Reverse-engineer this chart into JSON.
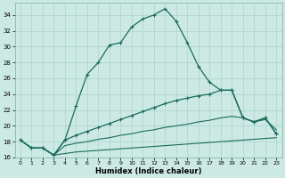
{
  "xlabel": "Humidex (Indice chaleur)",
  "bg_color": "#cce9e4",
  "grid_color": "#b0d8d0",
  "line_color": "#1a6b5e",
  "xlim": [
    -0.5,
    23.5
  ],
  "ylim": [
    16,
    35.5
  ],
  "yticks": [
    16,
    18,
    20,
    22,
    24,
    26,
    28,
    30,
    32,
    34
  ],
  "xticks": [
    0,
    1,
    2,
    3,
    4,
    5,
    6,
    7,
    8,
    9,
    10,
    11,
    12,
    13,
    14,
    15,
    16,
    17,
    18,
    19,
    20,
    21,
    22,
    23
  ],
  "line1_x": [
    0,
    1,
    2,
    3,
    4,
    5,
    6,
    7,
    8,
    9,
    10,
    11,
    12,
    13,
    14,
    15,
    16,
    17,
    18,
    19,
    20,
    21,
    22,
    23
  ],
  "line1_y": [
    18.2,
    17.2,
    17.2,
    16.3,
    18.2,
    22.5,
    26.5,
    28.0,
    30.2,
    30.5,
    32.5,
    33.5,
    34.0,
    34.8,
    33.2,
    30.5,
    27.5,
    25.5,
    24.5,
    24.5,
    21.0,
    20.5,
    21.0,
    19.0
  ],
  "line2_x": [
    0,
    1,
    2,
    3,
    4,
    5,
    6,
    7,
    8,
    9,
    10,
    11,
    12,
    13,
    14,
    15,
    16,
    17,
    18,
    19,
    20,
    21,
    22,
    23
  ],
  "line2_y": [
    18.2,
    17.2,
    17.2,
    16.3,
    18.2,
    18.8,
    19.3,
    19.8,
    20.3,
    20.8,
    21.3,
    21.8,
    22.3,
    22.8,
    23.2,
    23.5,
    23.8,
    24.0,
    24.5,
    24.5,
    21.0,
    20.5,
    21.0,
    19.0
  ],
  "line3_x": [
    0,
    1,
    2,
    3,
    4,
    5,
    6,
    7,
    8,
    9,
    10,
    11,
    12,
    13,
    14,
    15,
    16,
    17,
    18,
    19,
    20,
    21,
    22,
    23
  ],
  "line3_y": [
    18.2,
    17.2,
    17.2,
    16.3,
    17.5,
    17.8,
    18.0,
    18.3,
    18.5,
    18.8,
    19.0,
    19.3,
    19.5,
    19.8,
    20.0,
    20.2,
    20.5,
    20.7,
    21.0,
    21.2,
    21.0,
    20.5,
    20.8,
    19.5
  ],
  "line4_x": [
    0,
    1,
    2,
    3,
    4,
    5,
    6,
    7,
    8,
    9,
    10,
    11,
    12,
    13,
    14,
    15,
    16,
    17,
    18,
    19,
    20,
    21,
    22,
    23
  ],
  "line4_y": [
    18.2,
    17.2,
    17.2,
    16.3,
    16.5,
    16.7,
    16.8,
    16.9,
    17.0,
    17.1,
    17.2,
    17.3,
    17.4,
    17.5,
    17.6,
    17.7,
    17.8,
    17.9,
    18.0,
    18.1,
    18.2,
    18.3,
    18.4,
    18.5
  ]
}
